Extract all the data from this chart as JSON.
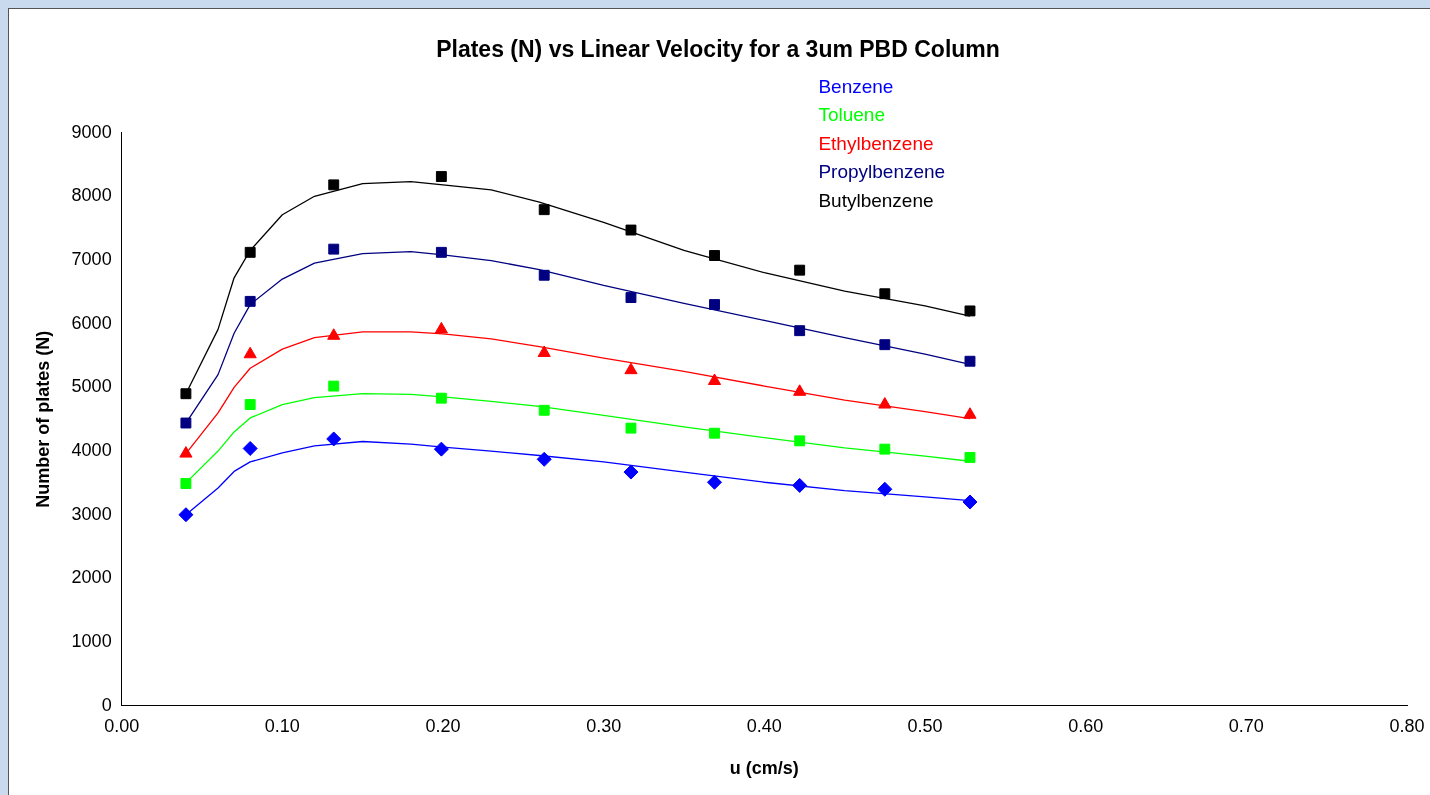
{
  "chart_data": {
    "type": "scatter",
    "title": "Plates (N) vs Linear Velocity for a 3um PBD Column",
    "xlabel": "u (cm/s)",
    "ylabel": "Number of plates (N)",
    "x": [
      0.04,
      0.08,
      0.132,
      0.199,
      0.263,
      0.317,
      0.369,
      0.422,
      0.475,
      0.528
    ],
    "series": [
      {
        "name": "Benzene",
        "marker": "diamond",
        "color": "#0000ff",
        "values": [
          3000,
          4040,
          4190,
          4030,
          3870,
          3670,
          3510,
          3460,
          3400,
          3200
        ]
      },
      {
        "name": "Toluene",
        "marker": "square",
        "color": "#00ff00",
        "values": [
          3490,
          4730,
          5020,
          4830,
          4640,
          4360,
          4280,
          4160,
          4030,
          3900
        ]
      },
      {
        "name": "Ethylbenzene",
        "marker": "triangle",
        "color": "#ff0000",
        "values": [
          3960,
          5520,
          5810,
          5910,
          5540,
          5270,
          5100,
          4930,
          4730,
          4570
        ]
      },
      {
        "name": "Propylbenzene",
        "marker": "square",
        "color": "#000080",
        "values": [
          4440,
          6350,
          7170,
          7120,
          6760,
          6410,
          6300,
          5890,
          5670,
          5410
        ]
      },
      {
        "name": "Butylbenzene",
        "marker": "square",
        "color": "#000000",
        "values": [
          4900,
          7120,
          8180,
          8310,
          7790,
          7470,
          7070,
          6840,
          6470,
          6200
        ]
      },
      {
        "type": "line",
        "marker": "none",
        "color": "#0000ff",
        "x": [
          0.04,
          0.06,
          0.07,
          0.08,
          0.1,
          0.12,
          0.15,
          0.18,
          0.2,
          0.23,
          0.26,
          0.3,
          0.35,
          0.4,
          0.45,
          0.5,
          0.528
        ],
        "values": [
          3000,
          3420,
          3680,
          3830,
          3970,
          4080,
          4150,
          4110,
          4060,
          4000,
          3930,
          3830,
          3670,
          3510,
          3380,
          3280,
          3220
        ]
      },
      {
        "type": "line",
        "marker": "none",
        "color": "#00ff00",
        "x": [
          0.04,
          0.06,
          0.07,
          0.08,
          0.1,
          0.12,
          0.15,
          0.18,
          0.2,
          0.23,
          0.26,
          0.3,
          0.35,
          0.4,
          0.45,
          0.5,
          0.528
        ],
        "values": [
          3500,
          4000,
          4300,
          4520,
          4730,
          4840,
          4900,
          4890,
          4850,
          4780,
          4700,
          4560,
          4380,
          4210,
          4050,
          3920,
          3840
        ]
      },
      {
        "type": "line",
        "marker": "none",
        "color": "#ff0000",
        "x": [
          0.04,
          0.06,
          0.07,
          0.08,
          0.1,
          0.12,
          0.15,
          0.18,
          0.2,
          0.23,
          0.26,
          0.3,
          0.35,
          0.4,
          0.45,
          0.5,
          0.528
        ],
        "values": [
          3960,
          4600,
          5000,
          5300,
          5600,
          5780,
          5870,
          5870,
          5840,
          5760,
          5640,
          5460,
          5250,
          5020,
          4800,
          4620,
          4510
        ]
      },
      {
        "type": "line",
        "marker": "none",
        "color": "#000080",
        "x": [
          0.04,
          0.06,
          0.07,
          0.08,
          0.1,
          0.12,
          0.15,
          0.18,
          0.2,
          0.23,
          0.26,
          0.3,
          0.35,
          0.4,
          0.45,
          0.5,
          0.528
        ],
        "values": [
          4440,
          5200,
          5850,
          6300,
          6700,
          6950,
          7100,
          7130,
          7080,
          6990,
          6850,
          6600,
          6320,
          6050,
          5780,
          5520,
          5360
        ]
      },
      {
        "type": "line",
        "marker": "none",
        "color": "#000000",
        "x": [
          0.04,
          0.06,
          0.07,
          0.08,
          0.1,
          0.12,
          0.15,
          0.18,
          0.2,
          0.23,
          0.26,
          0.3,
          0.35,
          0.4,
          0.45,
          0.5,
          0.528
        ],
        "values": [
          4900,
          5910,
          6720,
          7150,
          7710,
          8000,
          8200,
          8230,
          8180,
          8100,
          7910,
          7590,
          7150,
          6800,
          6510,
          6280,
          6120
        ]
      }
    ],
    "xlim": [
      0,
      0.8
    ],
    "xticks": [
      {
        "value": 0,
        "label": "0.00"
      },
      {
        "value": 0.1,
        "label": "0.10"
      },
      {
        "value": 0.2,
        "label": "0.20"
      },
      {
        "value": 0.3,
        "label": "0.30"
      },
      {
        "value": 0.4,
        "label": "0.40"
      },
      {
        "value": 0.5,
        "label": "0.50"
      },
      {
        "value": 0.6,
        "label": "0.60"
      },
      {
        "value": 0.7,
        "label": "0.70"
      },
      {
        "value": 0.8,
        "label": "0.80"
      }
    ],
    "ylim": [
      0,
      9000
    ],
    "yticks": [
      0,
      1000,
      2000,
      3000,
      4000,
      5000,
      6000,
      7000,
      8000,
      9000
    ],
    "grid": false,
    "legend": "top"
  }
}
